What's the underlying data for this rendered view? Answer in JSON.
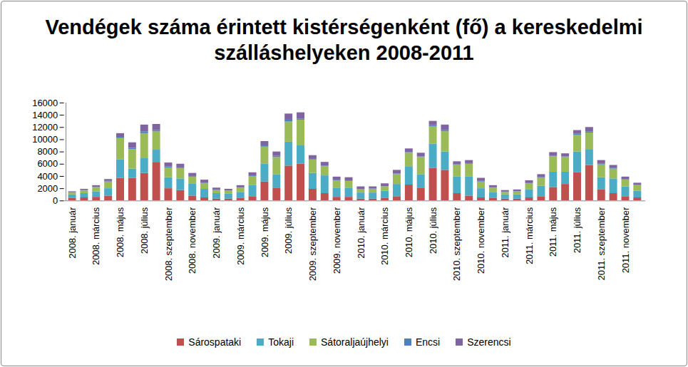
{
  "chart_data": {
    "type": "bar",
    "title": "Vendégek száma érintett kistérségenként (fő) a kereskedelmi  szálláshelyeken 2008-2011",
    "stacked": true,
    "grid": false,
    "legend": "bottom",
    "ylim": [
      0,
      16000
    ],
    "yticks": [
      0,
      2000,
      4000,
      6000,
      8000,
      10000,
      12000,
      14000,
      16000
    ],
    "categories": [
      "2008. január",
      null,
      "2008. március",
      null,
      "2008. május",
      null,
      "2008. július",
      null,
      "2008. szeptember",
      null,
      "2008. november",
      null,
      "2009. január",
      null,
      "2009. március",
      null,
      "2009. május",
      null,
      "2009. július",
      null,
      "2009. szeptember",
      null,
      "2009. november",
      null,
      "2010. január",
      null,
      "2010. március",
      null,
      "2010. május",
      null,
      "2010. július",
      null,
      "2010. szeptember",
      null,
      "2010. november",
      null,
      "2011. január",
      null,
      "2011. március",
      null,
      "2011. május",
      null,
      "2011. július",
      null,
      "2011. szeptember",
      null,
      "2011. november",
      null
    ],
    "series": [
      {
        "name": "Sárospataki",
        "color": "#c0504d",
        "values": [
          400,
          500,
          600,
          800,
          3700,
          3700,
          4500,
          6300,
          2000,
          1700,
          800,
          500,
          300,
          300,
          400,
          700,
          3100,
          2100,
          5700,
          6000,
          1900,
          1200,
          600,
          600,
          300,
          300,
          400,
          700,
          2600,
          2100,
          5300,
          5000,
          1200,
          800,
          500,
          400,
          300,
          300,
          500,
          700,
          2200,
          2700,
          4600,
          5800,
          1800,
          1200,
          700,
          500
        ]
      },
      {
        "name": "Tokaji",
        "color": "#4bacc6",
        "values": [
          600,
          700,
          900,
          1200,
          3000,
          1500,
          2500,
          2000,
          1800,
          1900,
          2000,
          1400,
          900,
          800,
          1000,
          1800,
          2900,
          2200,
          3900,
          3000,
          2600,
          2900,
          1500,
          1500,
          1000,
          1000,
          1200,
          2000,
          3000,
          2200,
          4000,
          3000,
          2700,
          3100,
          1500,
          1000,
          700,
          700,
          1300,
          1700,
          2500,
          2000,
          3400,
          2600,
          2000,
          2400,
          1600,
          1100
        ]
      },
      {
        "name": "Sátoraljaújhelyi",
        "color": "#9bbb59",
        "values": [
          300,
          450,
          700,
          1100,
          3500,
          3200,
          4000,
          3000,
          1600,
          1700,
          1100,
          900,
          500,
          500,
          700,
          1500,
          2800,
          2800,
          3300,
          4200,
          2200,
          1500,
          1200,
          1100,
          500,
          600,
          700,
          1600,
          2200,
          2800,
          2800,
          3300,
          1900,
          2100,
          1100,
          700,
          400,
          500,
          1000,
          1300,
          2500,
          2400,
          2700,
          2700,
          2100,
          1600,
          1100,
          900
        ]
      },
      {
        "name": "Encsi",
        "color": "#4f81bd",
        "values": [
          50,
          50,
          50,
          100,
          200,
          200,
          300,
          200,
          150,
          100,
          100,
          100,
          50,
          50,
          50,
          100,
          200,
          200,
          300,
          200,
          100,
          100,
          100,
          100,
          50,
          50,
          50,
          100,
          100,
          100,
          200,
          200,
          100,
          100,
          100,
          50,
          50,
          50,
          50,
          100,
          100,
          100,
          200,
          200,
          100,
          100,
          50,
          50
        ]
      },
      {
        "name": "Szerencsi",
        "color": "#8064a2",
        "values": [
          150,
          200,
          250,
          300,
          600,
          900,
          1100,
          1000,
          650,
          600,
          500,
          500,
          350,
          250,
          350,
          500,
          700,
          700,
          1000,
          1000,
          600,
          600,
          500,
          500,
          450,
          350,
          450,
          600,
          600,
          600,
          700,
          900,
          500,
          500,
          500,
          350,
          250,
          250,
          450,
          500,
          600,
          500,
          600,
          700,
          600,
          500,
          450,
          350
        ]
      }
    ]
  }
}
